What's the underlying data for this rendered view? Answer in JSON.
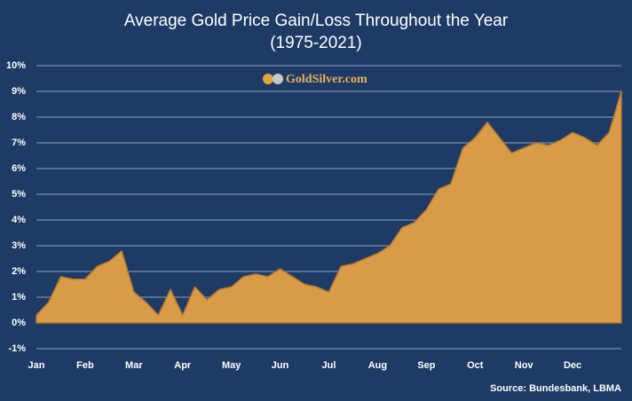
{
  "chart_data": {
    "type": "area",
    "title": "Average Gold Price Gain/Loss Throughout the Year",
    "subtitle": "(1975-2021)",
    "logo": "GoldSilver.com",
    "source": "Source: Bundesbank, LBMA",
    "categories": [
      "Jan",
      null,
      null,
      null,
      "Feb",
      null,
      null,
      null,
      "Mar",
      null,
      null,
      null,
      "Apr",
      null,
      null,
      null,
      "May",
      null,
      null,
      null,
      "Jun",
      null,
      null,
      null,
      "Jul",
      null,
      null,
      null,
      "Aug",
      null,
      null,
      null,
      "Sep",
      null,
      null,
      null,
      "Oct",
      null,
      null,
      null,
      "Nov",
      null,
      null,
      null,
      "Dec",
      null,
      null,
      null,
      null
    ],
    "values": [
      0.3,
      0.8,
      1.8,
      1.7,
      1.7,
      2.2,
      2.4,
      2.8,
      1.2,
      0.8,
      0.3,
      1.3,
      0.3,
      1.4,
      0.9,
      1.3,
      1.4,
      1.8,
      1.9,
      1.8,
      2.1,
      1.8,
      1.5,
      1.4,
      1.2,
      2.2,
      2.3,
      2.5,
      2.7,
      3.0,
      3.7,
      3.9,
      4.4,
      5.2,
      5.4,
      6.8,
      7.2,
      7.8,
      7.2,
      6.6,
      6.8,
      7.0,
      6.9,
      7.1,
      7.4,
      7.2,
      6.9,
      7.4,
      9.0
    ],
    "color": "#d89b48",
    "ylim": [
      -1,
      10
    ],
    "yticks": [
      {
        "value": -1,
        "label": "-1%"
      },
      {
        "value": 0,
        "label": "0%"
      },
      {
        "value": 1,
        "label": "1%"
      },
      {
        "value": 2,
        "label": "2%"
      },
      {
        "value": 3,
        "label": "3%"
      },
      {
        "value": 4,
        "label": "4%"
      },
      {
        "value": 5,
        "label": "5%"
      },
      {
        "value": 6,
        "label": "6%"
      },
      {
        "value": 7,
        "label": "7%"
      },
      {
        "value": 8,
        "label": "8%"
      },
      {
        "value": 9,
        "label": "9%"
      },
      {
        "value": 10,
        "label": "10%"
      }
    ],
    "grid": true
  }
}
